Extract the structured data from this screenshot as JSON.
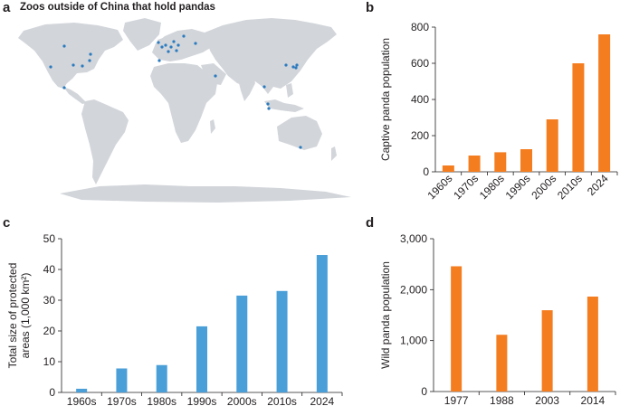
{
  "panels": {
    "a": {
      "letter": "a",
      "title": "Zoos outside of China that hold pandas",
      "colors": {
        "land": "#d2d5da",
        "zoo": "#2b7bbf"
      }
    },
    "b": {
      "letter": "b"
    },
    "c": {
      "letter": "c"
    },
    "d": {
      "letter": "d"
    }
  },
  "chart_data": [
    {
      "id": "b",
      "type": "bar",
      "title": "",
      "categories": [
        "1960s",
        "1970s",
        "1980s",
        "1990s",
        "2000s",
        "2010s",
        "2024"
      ],
      "values": [
        35,
        90,
        108,
        125,
        290,
        600,
        760
      ],
      "xlabel": "",
      "ylabel": "Captive panda population",
      "ylim": [
        0,
        800
      ],
      "yticks": [
        0,
        200,
        400,
        600,
        800
      ],
      "ytick_labels": [
        "0",
        "200",
        "400",
        "600",
        "800"
      ],
      "color": "#f47d20"
    },
    {
      "id": "c",
      "type": "bar",
      "title": "",
      "categories": [
        "1960s",
        "1970s",
        "1980s",
        "1990s",
        "2000s",
        "2010s",
        "2024"
      ],
      "values": [
        1.2,
        7.8,
        8.9,
        21.5,
        31.5,
        33,
        44.7
      ],
      "xlabel": "",
      "ylabel": "Total size of protected areas (1,000 km²)",
      "ylabel_lines": [
        "Total size of protected",
        "areas (1,000 km²)"
      ],
      "ylim": [
        0,
        50
      ],
      "yticks": [
        0,
        10,
        20,
        30,
        40,
        50
      ],
      "ytick_labels": [
        "0",
        "10",
        "20",
        "30",
        "40",
        "50"
      ],
      "color": "#4a9fd8"
    },
    {
      "id": "d",
      "type": "bar",
      "title": "",
      "categories": [
        "1977",
        "1988",
        "2003",
        "2014"
      ],
      "values": [
        2459,
        1114,
        1596,
        1864
      ],
      "xlabel": "",
      "ylabel": "Wild panda population",
      "ylim": [
        0,
        3000
      ],
      "yticks": [
        0,
        1000,
        2000,
        3000
      ],
      "ytick_labels": [
        "0",
        "1,000",
        "2,000",
        "3,000"
      ],
      "color": "#f47d20"
    }
  ]
}
